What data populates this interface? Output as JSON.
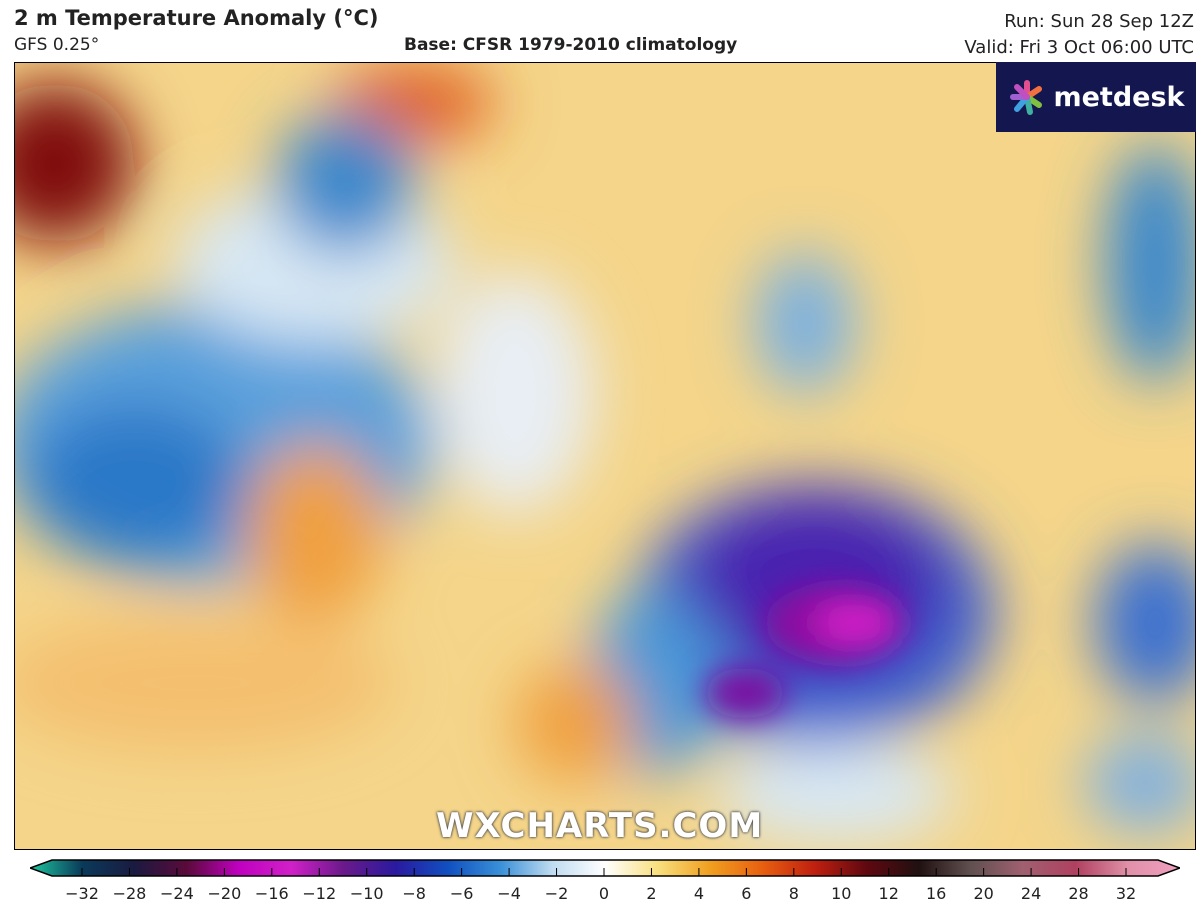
{
  "header": {
    "title": "2 m Temperature Anomaly (°C)",
    "model": "GFS 0.25°",
    "base": "Base: CFSR 1979-2010 climatology",
    "run": "Run: Sun 28 Sep 12Z",
    "valid": "Valid: Fri 3 Oct 06:00 UTC"
  },
  "logo": {
    "text": "metdesk",
    "bg": "#141650"
  },
  "watermark": "WXCHARTS.COM",
  "colorbar": {
    "ticks": [
      "−32",
      "−28",
      "−24",
      "−20",
      "−16",
      "−12",
      "−10",
      "−8",
      "−6",
      "−4",
      "−2",
      "0",
      "2",
      "4",
      "6",
      "8",
      "10",
      "12",
      "16",
      "20",
      "24",
      "28",
      "32"
    ],
    "colors": [
      "#1ec8a0",
      "#0a3a5a",
      "#1a1a40",
      "#5a0a3a",
      "#c000c0",
      "#d020c8",
      "#6a1a8a",
      "#2a1aa0",
      "#1050c0",
      "#3a90d8",
      "#c0dcf0",
      "#ffffff",
      "#f8e080",
      "#f0a020",
      "#e86010",
      "#c02010",
      "#600810",
      "#201010",
      "#605050",
      "#a06070",
      "#b04060",
      "#e090a8",
      "#f0a0c0"
    ]
  }
}
